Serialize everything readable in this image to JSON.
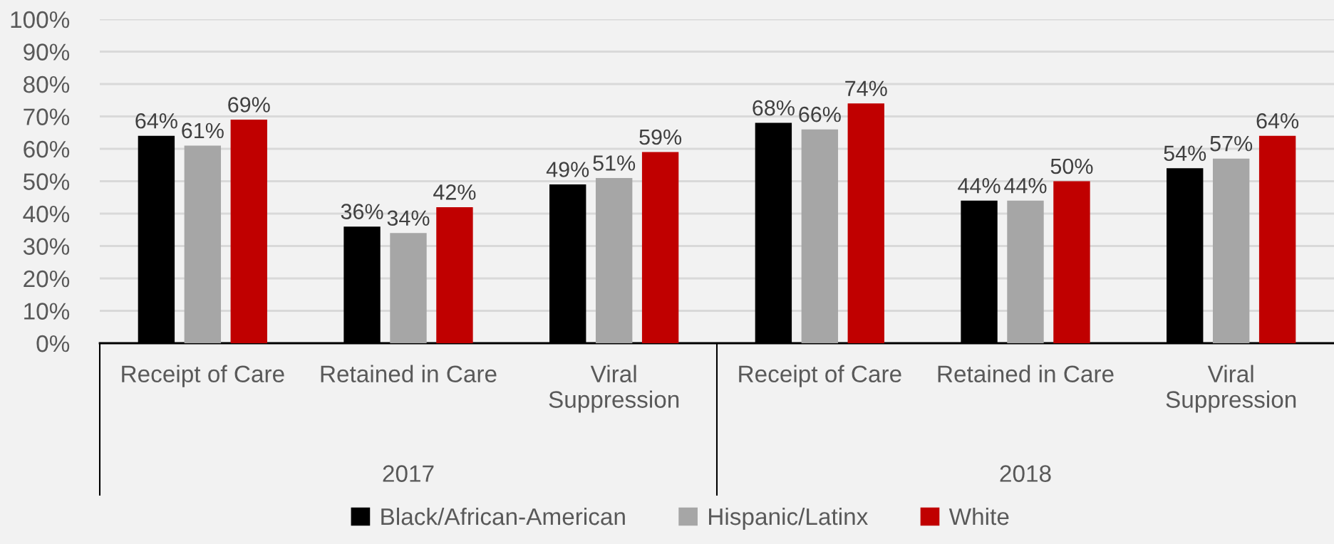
{
  "chart_data": {
    "type": "bar",
    "categories": [
      "Receipt of Care",
      "Retained in Care",
      "Viral Suppression",
      "Receipt of Care",
      "Retained in Care",
      "Viral Suppression"
    ],
    "series": [
      {
        "name": "Black/African-American",
        "color": "#000000",
        "values": [
          64,
          36,
          49,
          68,
          44,
          54
        ],
        "value_labels": [
          "64%",
          "36%",
          "49%",
          "68%",
          "44%",
          "54%"
        ]
      },
      {
        "name": "Hispanic/Latinx",
        "color": "#a6a6a6",
        "values": [
          61,
          34,
          51,
          66,
          44,
          57
        ],
        "value_labels": [
          "61%",
          "34%",
          "51%",
          "66%",
          "44%",
          "57%"
        ]
      },
      {
        "name": "White",
        "color": "#c00000",
        "values": [
          69,
          42,
          59,
          74,
          50,
          64
        ],
        "value_labels": [
          "69%",
          "42%",
          "59%",
          "74%",
          "50%",
          "64%"
        ]
      }
    ],
    "ylim": [
      0,
      100
    ],
    "yticks": [
      {
        "value": 0,
        "label": "0%"
      },
      {
        "value": 10,
        "label": "10%"
      },
      {
        "value": 20,
        "label": "20%"
      },
      {
        "value": 30,
        "label": "30%"
      },
      {
        "value": 40,
        "label": "40%"
      },
      {
        "value": 50,
        "label": "50%"
      },
      {
        "value": 60,
        "label": "60%"
      },
      {
        "value": 70,
        "label": "70%"
      },
      {
        "value": 80,
        "label": "80%"
      },
      {
        "value": 90,
        "label": "90%"
      },
      {
        "value": 100,
        "label": "100%"
      }
    ],
    "grid": "y",
    "legend": "bottom",
    "annotations": [
      "2017",
      "2018"
    ]
  }
}
